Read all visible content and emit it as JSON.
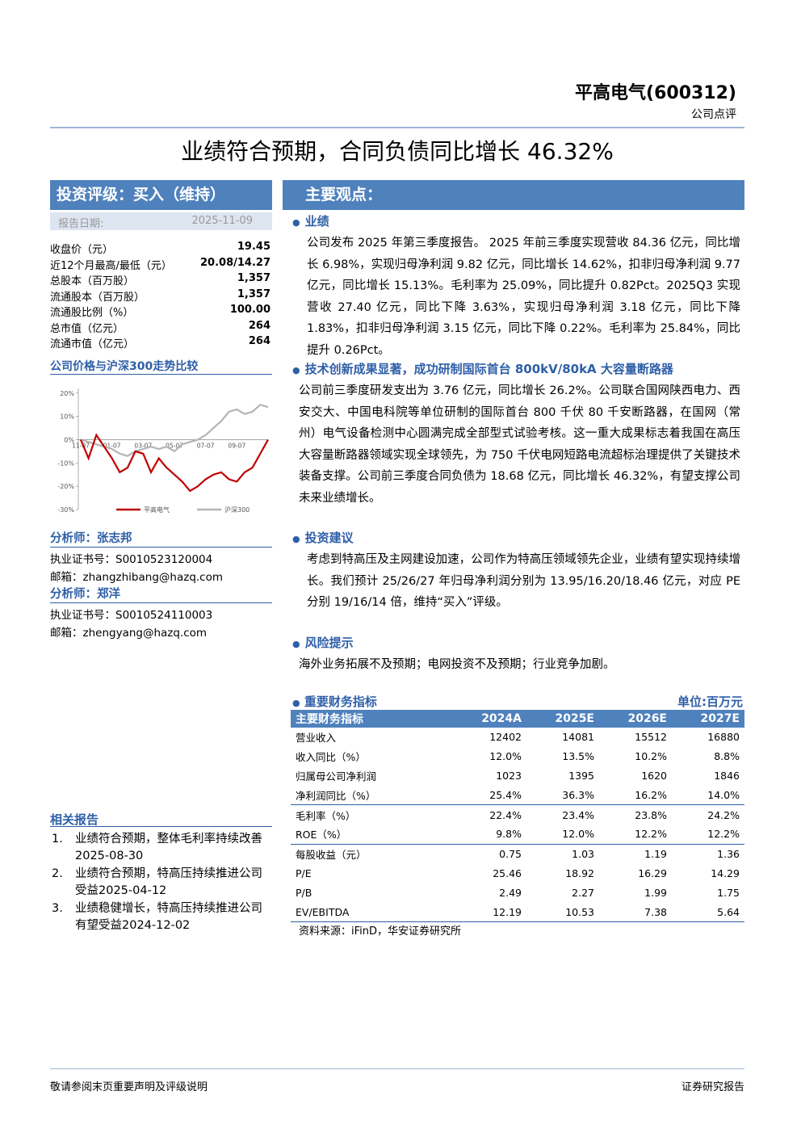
{
  "header": {
    "company": "平高电气(600312)",
    "report_type": "公司点评"
  },
  "title": "业绩符合预期，合同负债同比增长 46.32%",
  "rating": "投资评级：买入（维持）",
  "report_date": {
    "label": "报告日期:",
    "value": "2025-11-09"
  },
  "stock_info": [
    [
      "收盘价（元）",
      "19.45"
    ],
    [
      "近12个月最高/最低（元）",
      "20.08/14.27"
    ],
    [
      "总股本（百万股）",
      "1,357"
    ],
    [
      "流通股本（百万股）",
      "1,357"
    ],
    [
      "流通股比例（%）",
      "100.00"
    ],
    [
      "总市值（亿元）",
      "264"
    ],
    [
      "流通市值（亿元）",
      "264"
    ]
  ],
  "price_chart": {
    "title": "公司价格与沪深300走势比较",
    "type": "line",
    "categories": [
      "11-07",
      null,
      null,
      null,
      "01-07",
      null,
      null,
      null,
      "03-07",
      null,
      null,
      null,
      "05-07",
      null,
      null,
      null,
      "07-07",
      null,
      null,
      null,
      "09-07",
      null,
      null,
      null,
      null
    ],
    "series": [
      {
        "name": "平高电气",
        "color": "#c00000",
        "values": [
          0,
          -8,
          2,
          -3,
          -8,
          -14,
          -12,
          -5,
          -6,
          -14,
          -8,
          -12,
          -15,
          -18,
          -22,
          -20,
          -17,
          -15,
          -14,
          -17,
          -18,
          -14,
          -12,
          -6,
          0
        ]
      },
      {
        "name": "沪深300",
        "color": "#b4b4b4",
        "values": [
          0,
          -1,
          -2,
          -3,
          -4,
          -6,
          -7,
          -5,
          -4,
          -3,
          -4,
          -3,
          -5,
          -2,
          -1,
          0,
          2,
          5,
          8,
          12,
          13,
          11,
          12,
          15,
          14
        ]
      }
    ],
    "ylim": [
      -30,
      22
    ],
    "yticks": [
      {
        "value": 20,
        "label": "20%"
      },
      {
        "value": 10,
        "label": "10%"
      },
      {
        "value": 0,
        "label": "0%"
      },
      {
        "value": -10,
        "label": "-10%"
      },
      {
        "value": -20,
        "label": "-20%"
      },
      {
        "value": -30,
        "label": "-30%"
      }
    ]
  },
  "analysts": [
    {
      "title": "分析师：张志邦",
      "cert": "执业证书号：S0010523120004",
      "email": "邮箱：zhangzhibang@hazq.com"
    },
    {
      "title": "分析师：郑洋",
      "cert": "执业证书号：S0010524110003",
      "email": "邮箱：zhengyang@hazq.com"
    }
  ],
  "related_reports": {
    "title": "相关报告",
    "items": [
      {
        "num": "1.",
        "text": "业绩符合预期，整体毛利率持续改善2025-08-30"
      },
      {
        "num": "2.",
        "text": "业绩符合预期，特高压持续推进公司受益2025-04-12"
      },
      {
        "num": "3.",
        "text": "业绩稳健增长，特高压持续推进公司有望受益2024-12-02"
      }
    ]
  },
  "main_points": {
    "title": "主要观点：",
    "sections": [
      {
        "heading": "业绩",
        "text": "公司发布 2025 年第三季度报告。 2025 年前三季度实现营收 84.36 亿元，同比增长 6.98%，实现归母净利润 9.82 亿元，同比增长 14.62%，扣非归母净利润 9.77 亿元，同比增长 15.13%。毛利率为 25.09%，同比提升 0.82Pct。2025Q3 实现营收 27.40 亿元，同比下降 3.63%，实现归母净利润 3.18 亿元，同比下降 1.83%，扣非归母净利润 3.15 亿元，同比下降 0.22%。毛利率为 25.84%，同比提升 0.26Pct。"
      },
      {
        "heading": "技术创新成果显著，成功研制国际首台 800kV/80kA 大容量断路器",
        "text": "公司前三季度研发支出为 3.76 亿元，同比增长 26.2%。公司联合国网陕西电力、西安交大、中国电科院等单位研制的国际首台 800 千伏 80 千安断路器，在国网（常州）电气设备检测中心圆满完成全部型式试验考核。这一重大成果标志着我国在高压大容量断路器领域实现全球领先，为 750 千伏电网短路电流超标治理提供了关键技术装备支撑。公司前三季度合同负债为 18.68 亿元，同比增长 46.32%，有望支撑公司未来业绩增长。"
      },
      {
        "heading": "投资建议",
        "text": "考虑到特高压及主网建设加速，公司作为特高压领域领先企业，业绩有望实现持续增长。我们预计 25/26/27 年归母净利润分别为 13.95/16.20/18.46 亿元，对应 PE 分别 19/16/14 倍，维持“买入”评级。"
      },
      {
        "heading": "风险提示",
        "text": "海外业务拓展不及预期；电网投资不及预期；行业竞争加剧。"
      }
    ]
  },
  "financials": {
    "title": "重要财务指标",
    "unit": "单位:百万元",
    "columns": [
      "主要财务指标",
      "2024A",
      "2025E",
      "2026E",
      "2027E"
    ],
    "rows": [
      [
        "营业收入",
        "12402",
        "14081",
        "15512",
        "16880"
      ],
      [
        "收入同比（%）",
        "12.0%",
        "13.5%",
        "10.2%",
        "8.8%"
      ],
      [
        "归属母公司净利润",
        "1023",
        "1395",
        "1620",
        "1846"
      ],
      [
        "净利润同比（%）",
        "25.4%",
        "36.3%",
        "16.2%",
        "14.0%"
      ],
      [
        "毛利率（%）",
        "22.4%",
        "23.4%",
        "23.8%",
        "24.2%"
      ],
      [
        "ROE（%）",
        "9.8%",
        "12.0%",
        "12.2%",
        "12.2%"
      ],
      [
        "每股收益（元）",
        "0.75",
        "1.03",
        "1.19",
        "1.36"
      ],
      [
        "P/E",
        "25.46",
        "18.92",
        "16.29",
        "14.29"
      ],
      [
        "P/B",
        "2.49",
        "2.27",
        "1.99",
        "1.75"
      ],
      [
        "EV/EBITDA",
        "12.19",
        "10.53",
        "7.38",
        "5.64"
      ]
    ],
    "source": "资料来源：iFinD，华安证券研究所"
  },
  "footer": {
    "left": "敬请参阅末页重要声明及评级说明",
    "right": "证券研究报告"
  }
}
